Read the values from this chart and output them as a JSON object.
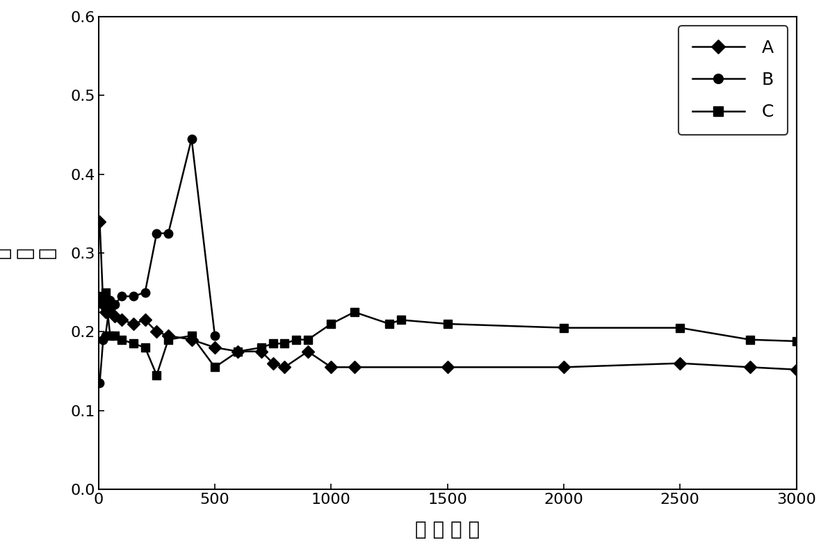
{
  "series_A": {
    "x": [
      5,
      20,
      30,
      50,
      70,
      100,
      150,
      200,
      250,
      300,
      400,
      500,
      600,
      700,
      750,
      800,
      900,
      1000,
      1100,
      1500,
      2000,
      2500,
      2800,
      3000
    ],
    "y": [
      0.34,
      0.235,
      0.225,
      0.23,
      0.22,
      0.215,
      0.21,
      0.215,
      0.2,
      0.195,
      0.19,
      0.18,
      0.175,
      0.175,
      0.16,
      0.155,
      0.175,
      0.155,
      0.155,
      0.155,
      0.155,
      0.16,
      0.155,
      0.152
    ],
    "label": "A",
    "marker": "D",
    "color": "#000000",
    "linestyle": "-"
  },
  "series_B": {
    "x": [
      5,
      20,
      30,
      50,
      70,
      100,
      150,
      200,
      250,
      300,
      400,
      500
    ],
    "y": [
      0.135,
      0.19,
      0.195,
      0.24,
      0.235,
      0.245,
      0.245,
      0.25,
      0.325,
      0.325,
      0.445,
      0.195
    ],
    "label": "B",
    "marker": "o",
    "color": "#000000",
    "linestyle": "-"
  },
  "series_C": {
    "x": [
      5,
      20,
      30,
      50,
      70,
      100,
      150,
      200,
      250,
      300,
      400,
      500,
      600,
      700,
      750,
      800,
      850,
      900,
      1000,
      1100,
      1250,
      1300,
      1500,
      2000,
      2500,
      2800,
      3000
    ],
    "y": [
      0.245,
      0.24,
      0.25,
      0.195,
      0.195,
      0.19,
      0.185,
      0.18,
      0.145,
      0.19,
      0.195,
      0.155,
      0.175,
      0.18,
      0.185,
      0.185,
      0.19,
      0.19,
      0.21,
      0.225,
      0.21,
      0.215,
      0.21,
      0.205,
      0.205,
      0.19,
      0.188
    ],
    "label": "C",
    "marker": "s",
    "color": "#000000",
    "linestyle": "-"
  },
  "xlabel": "滑 动 次 数",
  "ylabel_chars": [
    "摩",
    "擦",
    "系",
    "数"
  ],
  "xlim": [
    0,
    3000
  ],
  "ylim": [
    0.0,
    0.6
  ],
  "xticks": [
    0,
    500,
    1000,
    1500,
    2000,
    2500,
    3000
  ],
  "yticks": [
    0.0,
    0.1,
    0.2,
    0.3,
    0.4,
    0.5,
    0.6
  ],
  "background_color": "#ffffff",
  "legend_loc": "upper right",
  "axis_fontsize": 20,
  "tick_fontsize": 16,
  "legend_fontsize": 18,
  "marker_size": 9,
  "line_width": 1.8
}
